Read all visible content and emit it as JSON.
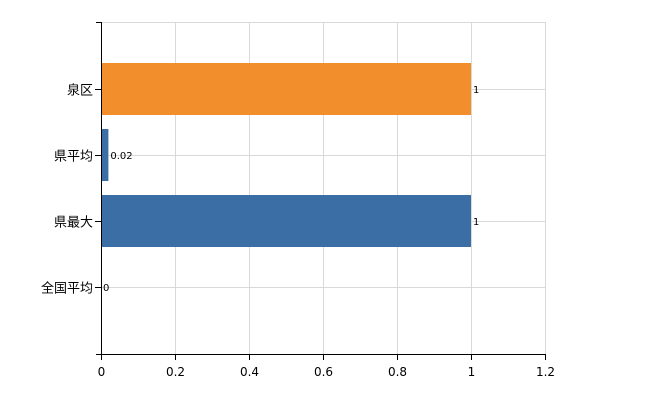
{
  "chart_data": {
    "type": "bar",
    "orientation": "horizontal",
    "categories": [
      "泉区",
      "県平均",
      "県最大",
      "全国平均"
    ],
    "values": [
      1,
      0.02,
      1,
      0
    ],
    "value_labels": [
      "1",
      "0.02",
      "1",
      "0"
    ],
    "bar_colors": [
      "#f28e2b",
      "#3a6ea5",
      "#3a6ea5",
      "#3a6ea5"
    ],
    "title": "",
    "xlabel": "",
    "ylabel": "",
    "xlim": [
      0,
      1.2
    ],
    "xticks": [
      0,
      0.2,
      0.4,
      0.6,
      0.8,
      1,
      1.2
    ],
    "xtick_labels": [
      "0",
      "0.2",
      "0.4",
      "0.6",
      "0.8",
      "1",
      "1.2"
    ],
    "grid": true,
    "legend": "none"
  }
}
